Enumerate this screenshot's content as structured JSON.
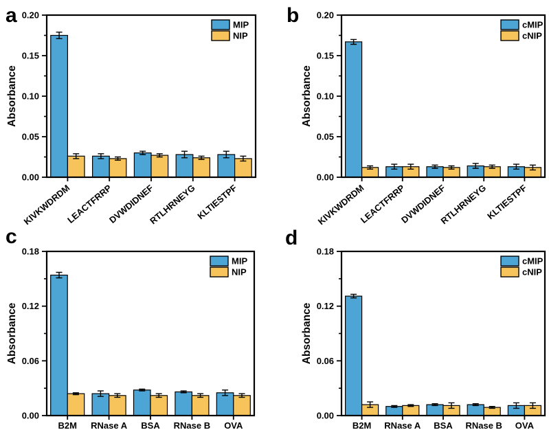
{
  "figure": {
    "background": "#ffffff",
    "axis_color": "#000000",
    "bar_outline_color": "#000000",
    "mip_color": "#4DA5D6",
    "nip_color": "#F6C45A",
    "panels": [
      {
        "label": "a"
      },
      {
        "label": "b"
      },
      {
        "label": "c"
      },
      {
        "label": "d"
      }
    ]
  },
  "chart_data": [
    {
      "panel_label": "a",
      "type": "bar",
      "title": "",
      "xlabel": "",
      "ylabel": "Absorbance",
      "categories": [
        "KIVKWDRDM",
        "LEACTFRRP",
        "DVWDIDNEF",
        "RTLHRNEYG",
        "KLTIESTPF"
      ],
      "series": [
        {
          "name": "MIP",
          "color": "#4DA5D6",
          "values": [
            0.175,
            0.026,
            0.03,
            0.028,
            0.028
          ],
          "errors": [
            0.004,
            0.003,
            0.002,
            0.004,
            0.004
          ]
        },
        {
          "name": "NIP",
          "color": "#F6C45A",
          "values": [
            0.026,
            0.023,
            0.027,
            0.024,
            0.023
          ],
          "errors": [
            0.003,
            0.002,
            0.002,
            0.002,
            0.003
          ]
        }
      ],
      "ylim": [
        0,
        0.2
      ],
      "yticks": [
        0.0,
        0.05,
        0.1,
        0.15,
        0.2
      ],
      "minor_tick_step": 0.025,
      "ytick_format_decimals": 2,
      "x_tick_label_rotation": -40,
      "legend_position": "top-right",
      "grid": false
    },
    {
      "panel_label": "b",
      "type": "bar",
      "title": "",
      "xlabel": "",
      "ylabel": "Absorbance",
      "categories": [
        "KIVKWDRDM",
        "LEACTFRRP",
        "DVWDIDNEF",
        "RTLHRNEYG",
        "KLTIESTPF"
      ],
      "series": [
        {
          "name": "cMIP",
          "color": "#4DA5D6",
          "values": [
            0.167,
            0.013,
            0.013,
            0.014,
            0.013
          ],
          "errors": [
            0.003,
            0.003,
            0.002,
            0.003,
            0.003
          ]
        },
        {
          "name": "cNIP",
          "color": "#F6C45A",
          "values": [
            0.012,
            0.013,
            0.012,
            0.013,
            0.012
          ],
          "errors": [
            0.002,
            0.003,
            0.002,
            0.002,
            0.003
          ]
        }
      ],
      "ylim": [
        0,
        0.2
      ],
      "yticks": [
        0.0,
        0.05,
        0.1,
        0.15,
        0.2
      ],
      "minor_tick_step": 0.025,
      "ytick_format_decimals": 2,
      "x_tick_label_rotation": -40,
      "legend_position": "top-right",
      "grid": false
    },
    {
      "panel_label": "c",
      "type": "bar",
      "title": "",
      "xlabel": "",
      "ylabel": "Absorbance",
      "categories": [
        "B2M",
        "RNase A",
        "BSA",
        "RNase B",
        "OVA"
      ],
      "series": [
        {
          "name": "MIP",
          "color": "#4DA5D6",
          "values": [
            0.154,
            0.024,
            0.028,
            0.026,
            0.025
          ],
          "errors": [
            0.003,
            0.003,
            0.001,
            0.001,
            0.003
          ]
        },
        {
          "name": "NIP",
          "color": "#F6C45A",
          "values": [
            0.024,
            0.022,
            0.022,
            0.022,
            0.022
          ],
          "errors": [
            0.001,
            0.002,
            0.002,
            0.002,
            0.002
          ]
        }
      ],
      "ylim": [
        0,
        0.18
      ],
      "yticks": [
        0.0,
        0.06,
        0.12,
        0.18
      ],
      "minor_tick_step": 0.03,
      "ytick_format_decimals": 2,
      "x_tick_label_rotation": 0,
      "legend_position": "top-right",
      "grid": false
    },
    {
      "panel_label": "d",
      "type": "bar",
      "title": "",
      "xlabel": "",
      "ylabel": "Absorbance",
      "categories": [
        "B2M",
        "RNase A",
        "BSA",
        "RNase B",
        "OVA"
      ],
      "series": [
        {
          "name": "cMIP",
          "color": "#4DA5D6",
          "values": [
            0.131,
            0.01,
            0.012,
            0.012,
            0.011
          ],
          "errors": [
            0.002,
            0.001,
            0.001,
            0.001,
            0.003
          ]
        },
        {
          "name": "cNIP",
          "color": "#F6C45A",
          "values": [
            0.012,
            0.011,
            0.011,
            0.009,
            0.011
          ],
          "errors": [
            0.003,
            0.001,
            0.003,
            0.001,
            0.003
          ]
        }
      ],
      "ylim": [
        0,
        0.18
      ],
      "yticks": [
        0.0,
        0.06,
        0.12,
        0.18
      ],
      "minor_tick_step": 0.03,
      "ytick_format_decimals": 2,
      "x_tick_label_rotation": 0,
      "legend_position": "top-right",
      "grid": false
    }
  ]
}
